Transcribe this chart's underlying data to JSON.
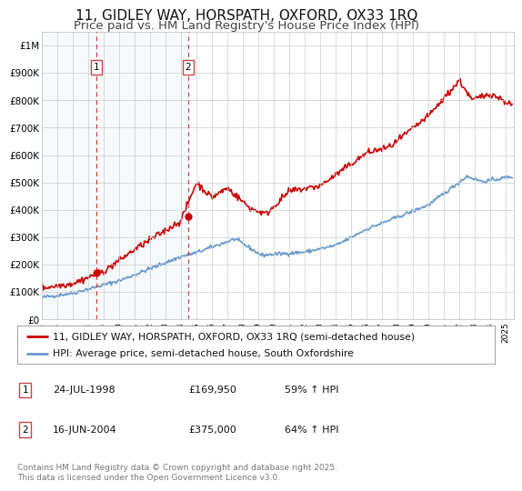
{
  "title": "11, GIDLEY WAY, HORSPATH, OXFORD, OX33 1RQ",
  "subtitle": "Price paid vs. HM Land Registry's House Price Index (HPI)",
  "title_fontsize": 11,
  "subtitle_fontsize": 9.5,
  "background_color": "#ffffff",
  "plot_bg_color": "#ffffff",
  "grid_color": "#cccccc",
  "red_line_color": "#cc0000",
  "blue_line_color": "#6699cc",
  "sale_line_color": "#cc4444",
  "ylim": [
    0,
    1050000
  ],
  "yticks": [
    0,
    100000,
    200000,
    300000,
    400000,
    500000,
    600000,
    700000,
    800000,
    900000,
    1000000
  ],
  "ytick_labels": [
    "£0",
    "£100K",
    "£200K",
    "£300K",
    "£400K",
    "£500K",
    "£600K",
    "£700K",
    "£800K",
    "£900K",
    "£1M"
  ],
  "xlim_start": 1995.0,
  "xlim_end": 2025.5,
  "xtick_years": [
    1995,
    1996,
    1997,
    1998,
    1999,
    2000,
    2001,
    2002,
    2003,
    2004,
    2005,
    2006,
    2007,
    2008,
    2009,
    2010,
    2011,
    2012,
    2013,
    2014,
    2015,
    2016,
    2017,
    2018,
    2019,
    2020,
    2021,
    2022,
    2023,
    2024,
    2025
  ],
  "sale1_x": 1998.56,
  "sale1_y": 169950,
  "sale2_x": 2004.46,
  "sale2_y": 375000,
  "legend_line1": "11, GIDLEY WAY, HORSPATH, OXFORD, OX33 1RQ (semi-detached house)",
  "legend_line2": "HPI: Average price, semi-detached house, South Oxfordshire",
  "footer1": "Contains HM Land Registry data © Crown copyright and database right 2025.",
  "footer2": "This data is licensed under the Open Government Licence v3.0.",
  "table_row1": [
    "1",
    "24-JUL-1998",
    "£169,950",
    "59% ↑ HPI"
  ],
  "table_row2": [
    "2",
    "16-JUN-2004",
    "£375,000",
    "64% ↑ HPI"
  ]
}
